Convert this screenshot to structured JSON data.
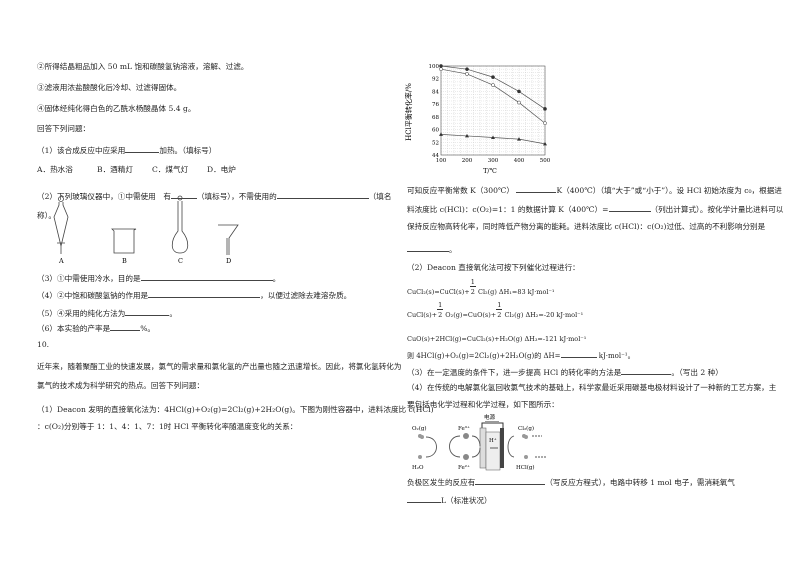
{
  "left": {
    "step3": "②所得结晶粗品加入 50 mL 饱和碳酸氢钠溶液，溶解、过滤。",
    "step4": "③滤液用浓盐酸酸化后冷却、过滤得固体。",
    "step5": "④固体经纯化得白色的乙酰水杨酸晶体 5.4 g。",
    "answer_prompt": "回答下列问题：",
    "q1_a": "（1）该合成反应中应采用",
    "q1_b": "加热。（填标号）",
    "q1_options": [
      "A．热水浴",
      "B．酒精灯",
      "C．煤气灯",
      "D．电炉"
    ],
    "q2_a": "（2）下列玻璃仪器中，①中需使用　有",
    "q2_b": "（填标号），不需使用的",
    "q2_c": "（填名",
    "q2_d": "称）。",
    "glassware_labels": [
      "A",
      "B",
      "C",
      "D"
    ],
    "q3_a": "（3）①中需使用冷水，目的是",
    "q3_b": "。",
    "q4_a": "（4）②中饱和碳酸氢钠的作用是",
    "q4_b": "，以便过滤除去难溶杂质。",
    "q5_a": "（5）④采用的纯化方法为",
    "q5_b": "。",
    "q6_a": "（6）本实验的产率是",
    "q6_b": "%。",
    "q10_num": "10.",
    "q10_intro1": "近年来，随着聚酯工业的快速发展，氯气的需求量和氯化氢的产出量也随之迅速增长。因此，将氯化氢转化为",
    "q10_intro2": "氯气的技术成为科学研究的热点。回答下列问题：",
    "q10_1a": "（1）Deacon 发明的直接氧化法为：4HCl(g)+O₂(g)=2Cl₂(g)+2H₂O(g)。下图为刚性容器中，进料浓度比 c(HCl)",
    "q10_1b": "：c(O₂)分别等于 1：1、4：1、7：1时 HCl 平衡转化率随温度变化的关系："
  },
  "chart_data": {
    "type": "line",
    "title": "",
    "xlabel": "T/℃",
    "ylabel": "HCl平衡转化率/%",
    "x": [
      100,
      200,
      300,
      400,
      500
    ],
    "xlim": [
      100,
      500
    ],
    "ylim": [
      44,
      100
    ],
    "yticks": [
      44,
      52,
      60,
      68,
      76,
      84,
      92,
      100
    ],
    "grid": true,
    "series": [
      {
        "marker": "filled-circle",
        "values": [
          100,
          98,
          93,
          84,
          73
        ]
      },
      {
        "marker": "open-circle",
        "values": [
          98,
          95,
          88,
          77,
          64
        ]
      },
      {
        "marker": "filled-triangle",
        "values": [
          57,
          56,
          55,
          54,
          51
        ]
      }
    ]
  },
  "right": {
    "p1_a": "可知反应平衡常数 K（300℃）",
    "p1_b": "K（400℃）（填“大于”或“小于”）。设 HCl 初始浓度为 c₀，根据进",
    "p2_a": "料浓度比 c(HCl)：c(O₂)=1：1 的数据计算 K（400℃）=",
    "p2_b": "（列出计算式）。按化学计量比进料可以",
    "p3": "保持反应物高转化率，同时降低产物分离的能耗。进料浓度比 c(HCl)：c(O₂)过低、过高的不利影响分别是",
    "p4_b": "。",
    "q2": "（2）Deacon 直接氧化法可按下列催化过程进行：",
    "frac_num": "1",
    "frac_den": "2",
    "eq1_a": "CuCl₂(s)=CuCl(s)+",
    "eq1_b": "Cl₂(g)  ΔH₁=83 kJ·mol⁻¹",
    "eq2_a": "CuCl(s)+",
    "eq2_b": "O₂(g)=CuO(s)+",
    "eq2_c": "Cl₂(g)  ΔH₂=-20 kJ·mol⁻¹",
    "eq3": "CuO(s)+2HCl(g)=CuCl₂(s)+H₂O(g)   ΔH₃=-121 kJ·mol⁻¹",
    "eq4_a": "则 4HCl(g)+O₂(g)=2Cl₂(g)+2H₂O(g)的 ΔH=",
    "eq4_b": "kJ·mol⁻¹。",
    "q3_a": "（3）在一定温度的条件下，进一步提高 HCl 的转化率的方法是",
    "q3_b": "。（写出 2 种）",
    "q4_1": "（4）在传统的电解氯化氢回收氯气技术的基础上，科学家最近采用碳基电极材料设计了一种新的工艺方案，主",
    "q4_2": "要包括电化学过程和化学过程，如下图所示：",
    "diagram": {
      "power": "电源",
      "o2": "O₂(g)",
      "fe3": "Fe³⁺",
      "h2o": "H₂O",
      "fe2": "Fe²⁺",
      "hplus": "H⁺",
      "cl2": "Cl₂(g)",
      "hcl": "HCl(g)"
    },
    "q4_3a": "负极区发生的反应有",
    "q4_3b": "（写反应方程式），电路中转移 1 mol 电子，需消耗氧气",
    "q4_4b": "L（标准状况）"
  }
}
